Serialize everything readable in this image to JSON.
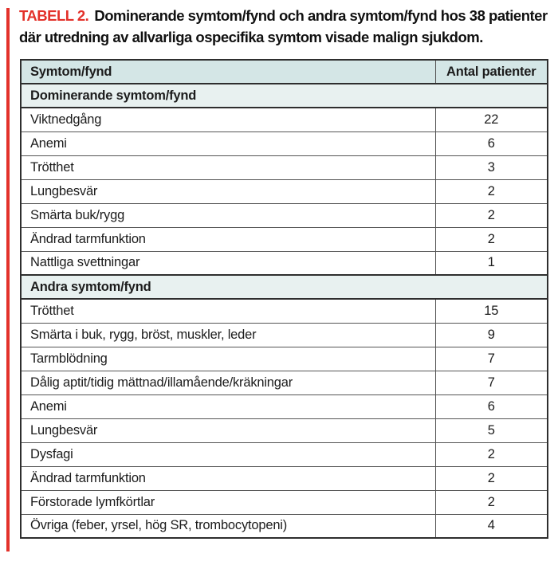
{
  "title": {
    "label": "TABELL 2.",
    "text": "Dominerande symtom/fynd och andra symtom/fynd hos 38 patienter där utredning av allvarliga ospecifika symtom visade malign sjukdom."
  },
  "table": {
    "columns": [
      "Symtom/fynd",
      "Antal patienter"
    ],
    "sections": [
      {
        "header": "Dominerande symtom/fynd",
        "rows": [
          [
            "Viktnedgång",
            22
          ],
          [
            "Anemi",
            6
          ],
          [
            "Trötthet",
            3
          ],
          [
            "Lungbesvär",
            2
          ],
          [
            "Smärta buk/rygg",
            2
          ],
          [
            "Ändrad tarmfunktion",
            2
          ],
          [
            "Nattliga svettningar",
            1
          ]
        ]
      },
      {
        "header": "Andra symtom/fynd",
        "rows": [
          [
            "Trötthet",
            15
          ],
          [
            "Smärta i buk, rygg, bröst, muskler, leder",
            9
          ],
          [
            "Tarmblödning",
            7
          ],
          [
            "Dålig aptit/tidig mättnad/illamående/kräkningar",
            7
          ],
          [
            "Anemi",
            6
          ],
          [
            "Lungbesvär",
            5
          ],
          [
            "Dysfagi",
            2
          ],
          [
            "Ändrad tarmfunktion",
            2
          ],
          [
            "Förstorade lymfkörtlar",
            2
          ],
          [
            "Övriga (feber, yrsel, hög SR, trombocytopeni)",
            4
          ]
        ]
      }
    ]
  },
  "chart_data": {
    "type": "table",
    "title": "TABELL 2. Dominerande symtom/fynd och andra symtom/fynd hos 38 patienter där utredning av allvarliga ospecifika symtom visade malign sjukdom.",
    "columns": [
      "Symtom/fynd",
      "Antal patienter"
    ],
    "groups": [
      {
        "name": "Dominerande symtom/fynd",
        "categories": [
          "Viktnedgång",
          "Anemi",
          "Trötthet",
          "Lungbesvär",
          "Smärta buk/rygg",
          "Ändrad tarmfunktion",
          "Nattliga svettningar"
        ],
        "values": [
          22,
          6,
          3,
          2,
          2,
          2,
          1
        ]
      },
      {
        "name": "Andra symtom/fynd",
        "categories": [
          "Trötthet",
          "Smärta i buk, rygg, bröst, muskler, leder",
          "Tarmblödning",
          "Dålig aptit/tidig mättnad/illamående/kräkningar",
          "Anemi",
          "Lungbesvär",
          "Dysfagi",
          "Ändrad tarmfunktion",
          "Förstorade lymfkörtlar",
          "Övriga (feber, yrsel, hög SR, trombocytopeni)"
        ],
        "values": [
          15,
          9,
          7,
          7,
          6,
          5,
          2,
          2,
          2,
          4
        ]
      }
    ]
  },
  "colors": {
    "accent_red": "#e3312a",
    "header_bg": "#d4e6e6",
    "section_bg": "#e8f1f0",
    "border_dark": "#2e2e2e",
    "row_border": "#555555"
  }
}
